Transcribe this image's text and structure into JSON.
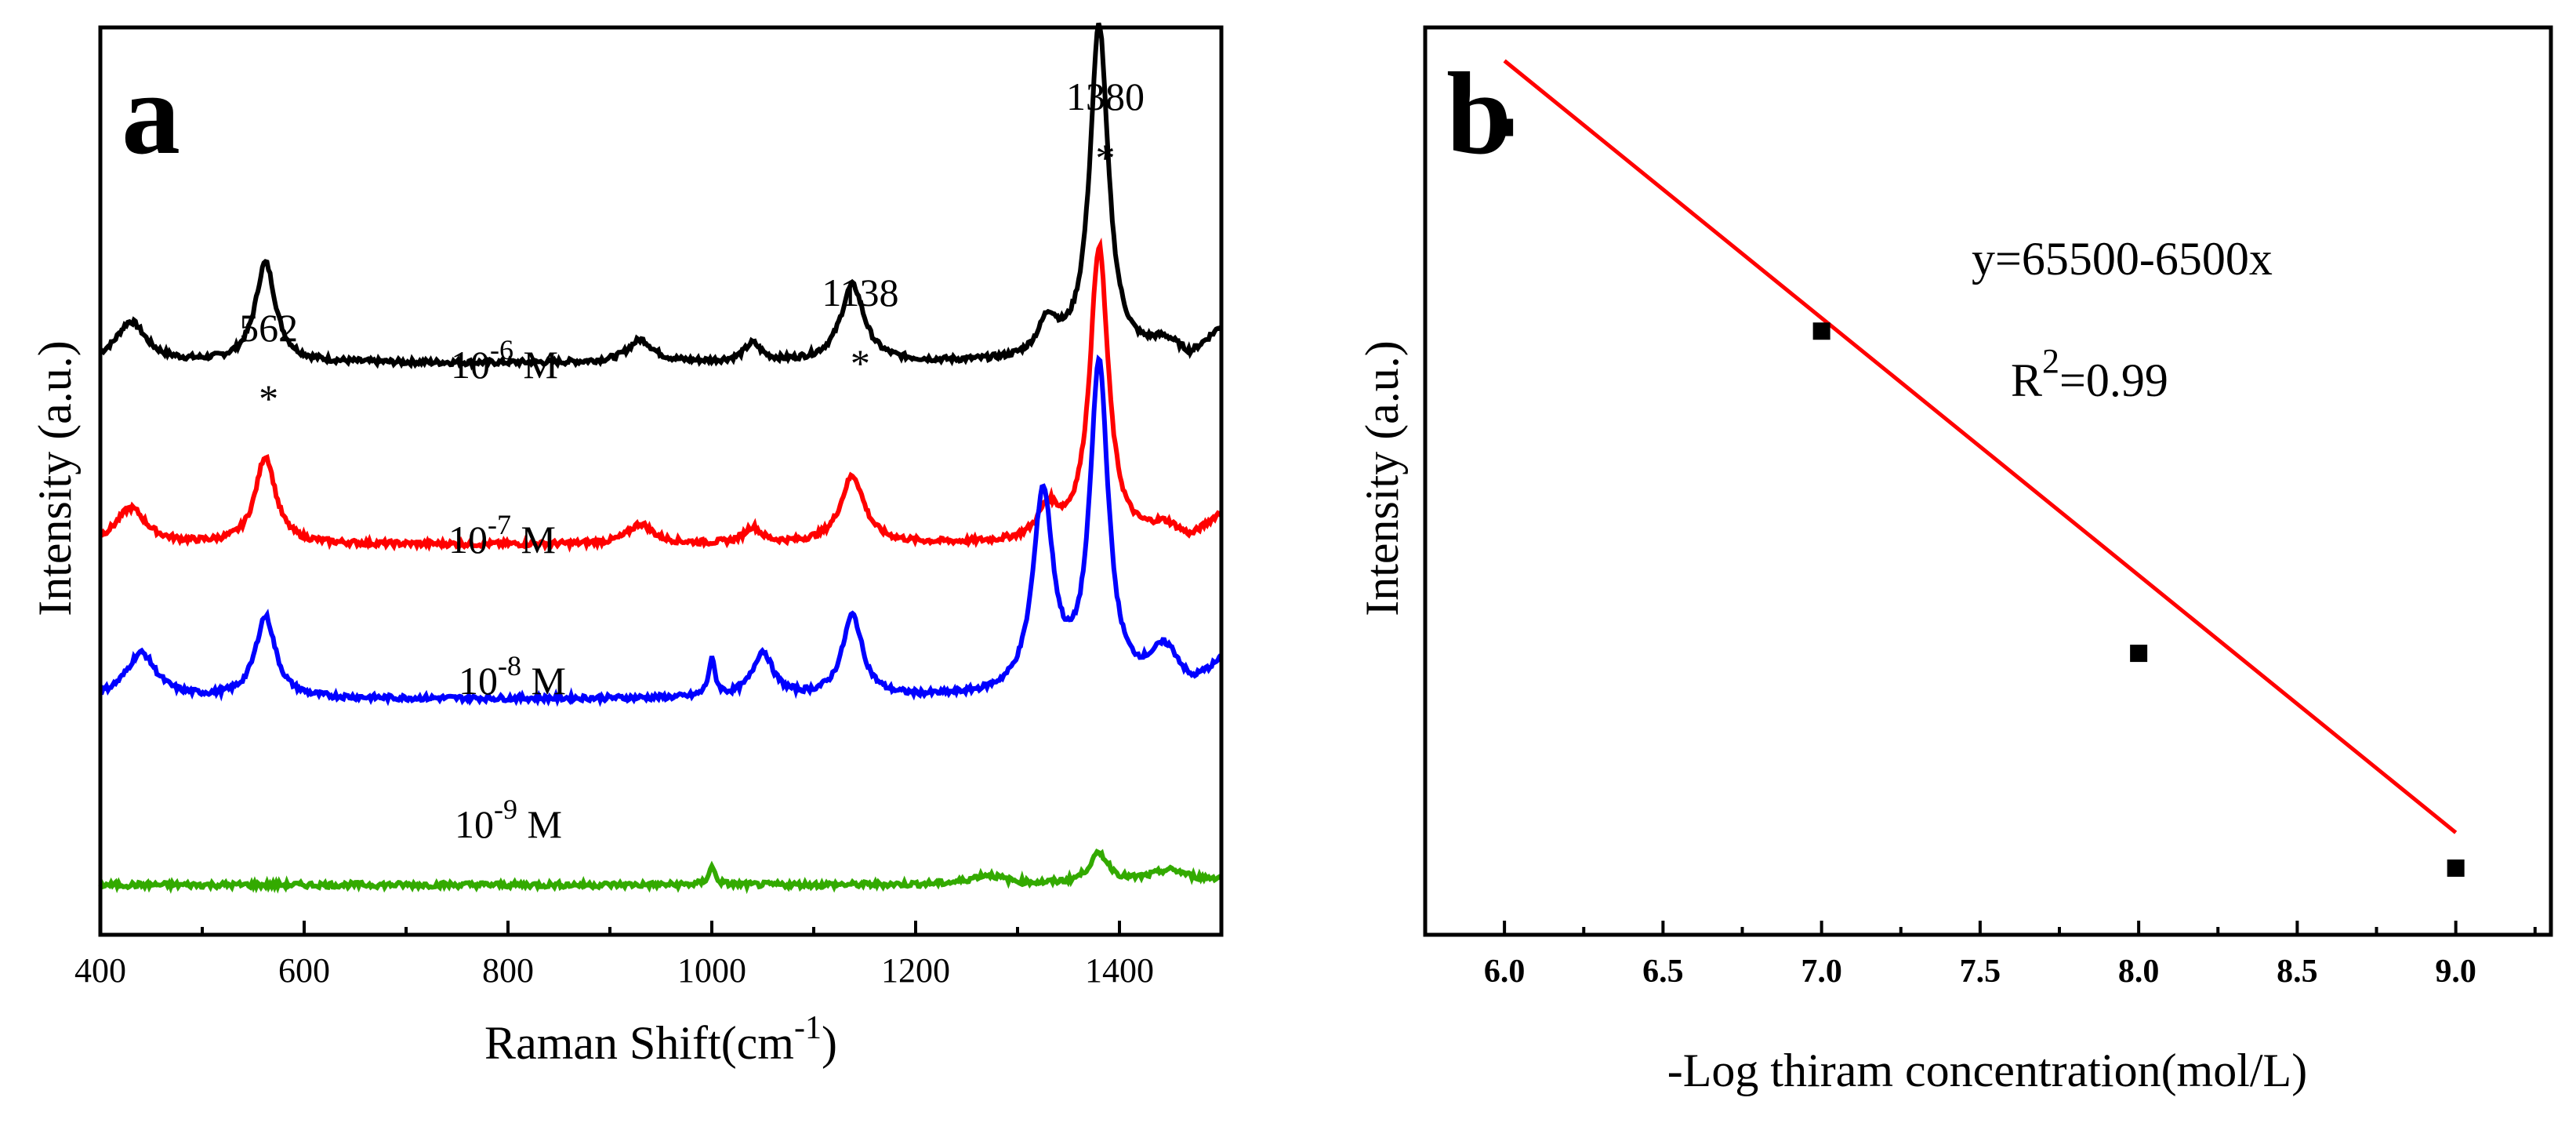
{
  "chart_data": [
    {
      "panel": "a",
      "type": "line",
      "title": "",
      "xlabel": "Raman Shift(cm",
      "xlabel_sup": "-1",
      "xlabel_tail": ")",
      "ylabel": "Intensity (a.u.)",
      "xlim": [
        400,
        1500
      ],
      "xticks": [
        "400",
        "600",
        "800",
        "1000",
        "1200",
        "1400"
      ],
      "peak_annotations": [
        {
          "label": "562",
          "marker": "*",
          "x": 562
        },
        {
          "label": "1138",
          "marker": "*",
          "x": 1138
        },
        {
          "label": "1380",
          "marker": "*",
          "x": 1380
        }
      ],
      "series": [
        {
          "name": "10",
          "sup": "-6",
          "unit": " M",
          "color": "#000000",
          "baseline": 0.63,
          "scale": 1.0
        },
        {
          "name": "10",
          "sup": "-7",
          "unit": " M",
          "color": "#ff0000",
          "baseline": 0.43,
          "scale": 0.88
        },
        {
          "name": "10",
          "sup": "-8",
          "unit": " M",
          "color": "#0000ff",
          "baseline": 0.26,
          "scale": 0.48
        },
        {
          "name": "10",
          "sup": "-9",
          "unit": " M",
          "color": "#33aa00",
          "baseline": 0.055,
          "scale": 0.13
        }
      ]
    },
    {
      "panel": "b",
      "type": "scatter",
      "title": "",
      "xlabel": "-Log thiram concentration(mol/L)",
      "ylabel": "Intensity (a.u.)",
      "xlim": [
        5.75,
        9.3
      ],
      "ylim": [
        4500,
        29000
      ],
      "xticks": [
        "6.0",
        "6.5",
        "7.0",
        "7.5",
        "8.0",
        "8.5",
        "9.0"
      ],
      "points": [
        {
          "x": 6.0,
          "y": 26300
        },
        {
          "x": 7.0,
          "y": 20800
        },
        {
          "x": 8.0,
          "y": 12100
        },
        {
          "x": 9.0,
          "y": 6300
        }
      ],
      "fit": {
        "intercept": 65500,
        "slope": -6500,
        "x_range": [
          6.0,
          9.0
        ],
        "color": "#ff0000"
      },
      "equation": "y=65500-6500x",
      "r2_prefix": "R",
      "r2_sup": "2",
      "r2_value": "=0.99"
    }
  ],
  "panel_letters": [
    "a",
    "b"
  ]
}
